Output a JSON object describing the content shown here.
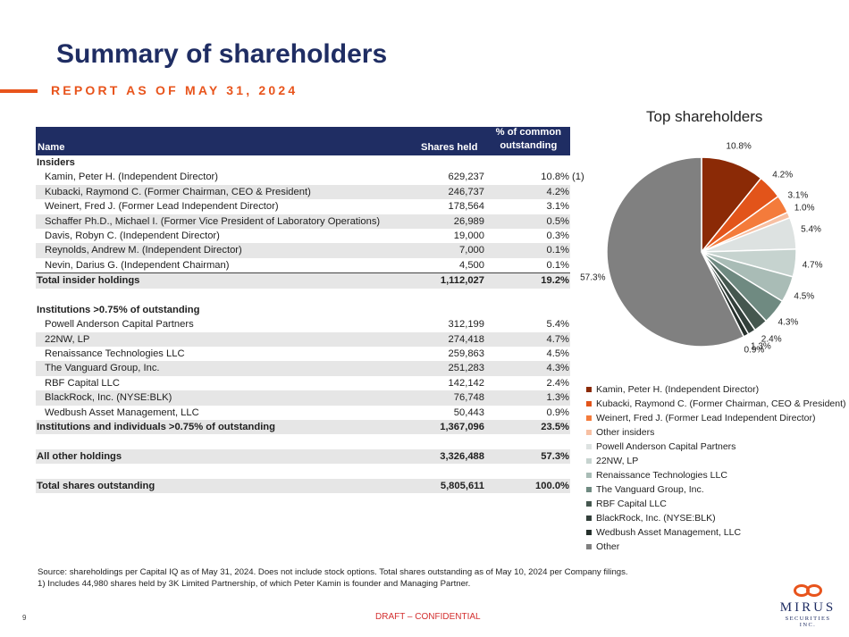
{
  "header": {
    "title": "Summary of shareholders",
    "subtitle": "REPORT AS OF MAY 31, 2024"
  },
  "table": {
    "col_name": "Name",
    "col_shares": "Shares held",
    "col_pct_line1": "% of common",
    "col_pct_line2": "outstanding",
    "insiders_label": "Insiders",
    "insiders": [
      {
        "name": "Kamin, Peter H. (Independent Director)",
        "shares": "629,237",
        "pct": "10.8%",
        "note": "(1)"
      },
      {
        "name": "Kubacki, Raymond C. (Former Chairman, CEO & President)",
        "shares": "246,737",
        "pct": "4.2%"
      },
      {
        "name": "Weinert, Fred J. (Former Lead Independent Director)",
        "shares": "178,564",
        "pct": "3.1%"
      },
      {
        "name": "Schaffer Ph.D., Michael I. (Former Vice President of Laboratory Operations)",
        "shares": "26,989",
        "pct": "0.5%"
      },
      {
        "name": "Davis, Robyn C. (Independent Director)",
        "shares": "19,000",
        "pct": "0.3%"
      },
      {
        "name": "Reynolds, Andrew M. (Independent Director)",
        "shares": "7,000",
        "pct": "0.1%"
      },
      {
        "name": "Nevin, Darius G. (Independent Chairman)",
        "shares": "4,500",
        "pct": "0.1%"
      }
    ],
    "total_insider": {
      "name": "Total insider holdings",
      "shares": "1,112,027",
      "pct": "19.2%"
    },
    "institutions_label": "Institutions >0.75% of outstanding",
    "institutions": [
      {
        "name": "Powell Anderson Capital Partners",
        "shares": "312,199",
        "pct": "5.4%"
      },
      {
        "name": "22NW, LP",
        "shares": "274,418",
        "pct": "4.7%"
      },
      {
        "name": "Renaissance Technologies LLC",
        "shares": "259,863",
        "pct": "4.5%"
      },
      {
        "name": "The Vanguard Group, Inc.",
        "shares": "251,283",
        "pct": "4.3%"
      },
      {
        "name": "RBF Capital LLC",
        "shares": "142,142",
        "pct": "2.4%"
      },
      {
        "name": "BlackRock, Inc. (NYSE:BLK)",
        "shares": "76,748",
        "pct": "1.3%"
      },
      {
        "name": "Wedbush Asset Management, LLC",
        "shares": "50,443",
        "pct": "0.9%"
      }
    ],
    "total_institutions": {
      "name": "Institutions and individuals >0.75% of outstanding",
      "shares": "1,367,096",
      "pct": "23.5%"
    },
    "other": {
      "name": "All other holdings",
      "shares": "3,326,488",
      "pct": "57.3%"
    },
    "total": {
      "name": "Total shares outstanding",
      "shares": "5,805,611",
      "pct": "100.0%"
    }
  },
  "chart_data": {
    "type": "pie",
    "title": "Top shareholders",
    "categories": [
      "Kamin, Peter H. (Independent Director)",
      "Kubacki, Raymond C. (Former Chairman, CEO & President)",
      "Weinert, Fred J. (Former Lead Independent Director)",
      "Other insiders",
      "Powell Anderson Capital Partners",
      "22NW, LP",
      "Renaissance Technologies LLC",
      "The Vanguard Group, Inc.",
      "RBF Capital LLC",
      "BlackRock, Inc. (NYSE:BLK)",
      "Wedbush Asset Management, LLC",
      "Other"
    ],
    "values": [
      10.8,
      4.2,
      3.1,
      1.0,
      5.4,
      4.7,
      4.5,
      4.3,
      2.4,
      1.3,
      0.9,
      57.3
    ],
    "labels": [
      "10.8%",
      "4.2%",
      "3.1%",
      "1.0%",
      "5.4%",
      "4.7%",
      "4.5%",
      "4.3%",
      "2.4%",
      "1.3%",
      "0.9%",
      "57.3%"
    ],
    "colors": [
      "#8b2a06",
      "#e2541a",
      "#f47b3b",
      "#f7c0a3",
      "#dde2e1",
      "#c6d3cf",
      "#a9bcb6",
      "#6f8a81",
      "#45574f",
      "#33403b",
      "#26302c",
      "#808080"
    ],
    "legend_position": "bottom"
  },
  "footer": {
    "source": "Source: shareholdings per Capital IQ as of May 31, 2024. Does not include stock options.  Total shares outstanding as of May 10, 2024 per Company filings.",
    "note": "1) Includes 44,980 shares held by 3K Limited Partnership, of which Peter Kamin is founder and Managing Partner.",
    "page": "9",
    "draft": "DRAFT – CONFIDENTIAL",
    "logo_name": "MIRUS",
    "logo_sub": "SECURITIES INC."
  }
}
